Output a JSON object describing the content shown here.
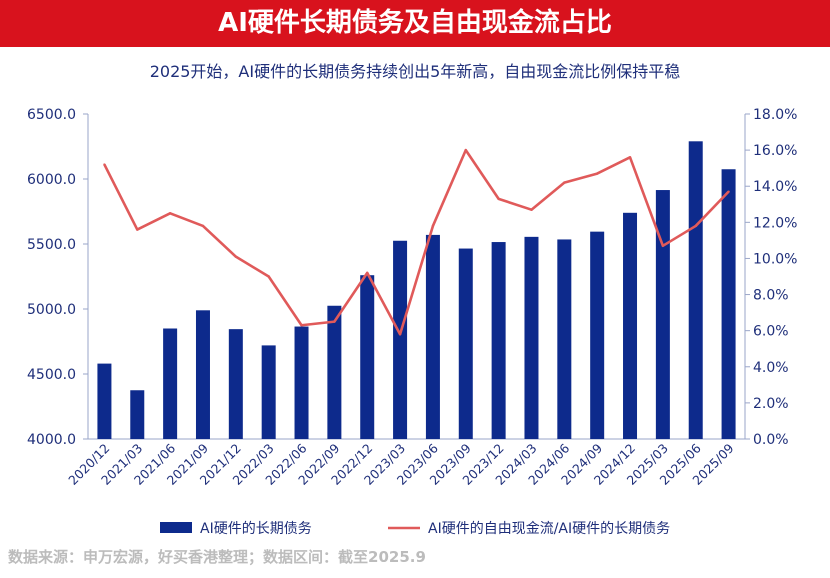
{
  "header": {
    "title": "AI硬件长期债务及自由现金流占比",
    "subtitle": "2025开始，AI硬件的长期债务持续创出5年新高，自由现金流比例保持平稳"
  },
  "footer": {
    "source": "数据来源：申万宏源，好买香港整理；数据区间：截至2025.9"
  },
  "colors": {
    "banner": "#d8121d",
    "bar": "#0d2a8c",
    "line": "#e05a5a",
    "axis_text": "#1f2f7a"
  },
  "chart_data": {
    "type": "bar",
    "categories": [
      "2020/12",
      "2021/03",
      "2021/06",
      "2021/09",
      "2021/12",
      "2022/03",
      "2022/06",
      "2022/09",
      "2022/12",
      "2023/03",
      "2023/06",
      "2023/09",
      "2023/12",
      "2024/03",
      "2024/06",
      "2024/09",
      "2024/12",
      "2025/03",
      "2025/06",
      "2025/09"
    ],
    "series": [
      {
        "name": "AI硬件的长期债务",
        "type": "bar",
        "axis": "left",
        "values": [
          4580,
          4375,
          4850,
          4990,
          4845,
          4720,
          4865,
          5025,
          5260,
          5525,
          5570,
          5465,
          5515,
          5555,
          5535,
          5595,
          5740,
          5915,
          6290,
          6075
        ]
      },
      {
        "name": "AI硬件的自由现金流/AI硬件的长期债务",
        "type": "line",
        "axis": "right",
        "values": [
          15.2,
          11.6,
          12.5,
          11.8,
          10.1,
          9.0,
          6.3,
          6.5,
          9.2,
          5.8,
          11.8,
          16.0,
          13.3,
          12.7,
          14.2,
          14.7,
          15.6,
          10.7,
          11.8,
          13.7
        ]
      }
    ],
    "y_left": {
      "min": 4000,
      "max": 6500,
      "step": 500,
      "tick_labels": [
        "4000.0",
        "4500.0",
        "5000.0",
        "5500.0",
        "6000.0",
        "6500.0"
      ]
    },
    "y_right": {
      "min": 0,
      "max": 18,
      "step": 2,
      "tick_labels": [
        "0.0%",
        "2.0%",
        "4.0%",
        "6.0%",
        "8.0%",
        "10.0%",
        "12.0%",
        "14.0%",
        "16.0%",
        "18.0%"
      ]
    },
    "legend": {
      "position": "bottom"
    },
    "grid": false
  }
}
